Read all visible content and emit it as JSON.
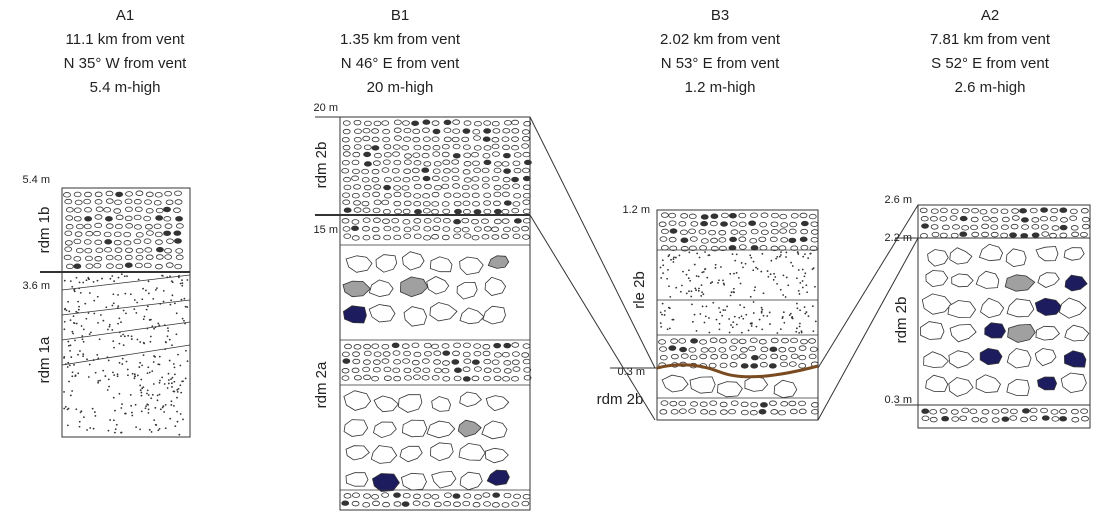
{
  "columns": [
    {
      "name": "A1",
      "distance": "11.1 km from vent",
      "direction": "N 35° W from vent",
      "height": "5.4 m-high",
      "levels": [
        "5.4 m",
        "3.6 m"
      ],
      "units": [
        "rdm 1b",
        "rdm 1a"
      ]
    },
    {
      "name": "B1",
      "distance": "1.35 km from vent",
      "direction": "N 46° E from vent",
      "height": "20 m-high",
      "levels": [
        "20 m",
        "15 m"
      ],
      "units": [
        "rdm 2b",
        "rdm 2a"
      ]
    },
    {
      "name": "B3",
      "distance": "2.02 km from vent",
      "direction": "N 53° E from vent",
      "height": "1.2 m-high",
      "levels": [
        "1.2 m",
        "0.3 m"
      ],
      "units": [
        "rle 2b",
        "rdm 2b"
      ]
    },
    {
      "name": "A2",
      "distance": "7.81 km from vent",
      "direction": "S 52° E from vent",
      "height": "2.6 m-high",
      "levels": [
        "2.6 m",
        "2.2 m",
        "0.3 m"
      ],
      "units": [
        "rdm 2b"
      ]
    }
  ]
}
